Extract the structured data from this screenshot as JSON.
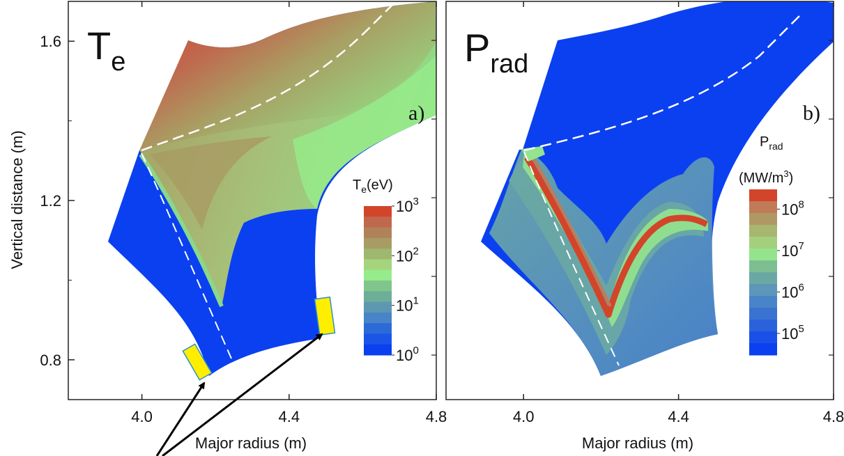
{
  "chart_data": [
    {
      "type": "heatmap",
      "panel_label": "a)",
      "quantity": {
        "symbol": "T",
        "subscript": "e"
      },
      "xlabel": "Major radius (m)",
      "ylabel": "Vertical distance (m)",
      "xlim": [
        3.8,
        4.8
      ],
      "ylim": [
        0.7,
        1.7
      ],
      "x_ticks": [
        "4.0",
        "4.4",
        "4.8"
      ],
      "y_ticks": [
        "0.8",
        "1.2",
        "1.6"
      ],
      "colorbar": {
        "title_symbol": "T",
        "title_subscript": "e",
        "title_unit": "(eV)",
        "scale": "log",
        "range": [
          1,
          1000
        ],
        "tick_labels": [
          {
            "base": "10",
            "exp": "3",
            "value": 1000
          },
          {
            "base": "10",
            "exp": "2",
            "value": 100
          },
          {
            "base": "10",
            "exp": "1",
            "value": 10
          },
          {
            "base": "10",
            "exp": "0",
            "value": 1
          }
        ]
      },
      "separatrix": "white dashed",
      "divertor_targets": "yellow rectangles"
    },
    {
      "type": "heatmap",
      "panel_label": "b)",
      "quantity": {
        "symbol": "P",
        "subscript": "rad"
      },
      "xlabel": "Major radius (m)",
      "xlim": [
        3.8,
        4.8
      ],
      "x_ticks": [
        "4.0",
        "4.4",
        "4.8"
      ],
      "colorbar": {
        "title_symbol": "P",
        "title_subscript": "rad",
        "title_unit_prefix": "(MW/m",
        "title_unit_exp": "3",
        "title_unit_suffix": ")",
        "scale": "log",
        "range": [
          30000,
          300000000
        ],
        "tick_labels": [
          {
            "base": "10",
            "exp": "8",
            "value": 100000000
          },
          {
            "base": "10",
            "exp": "7",
            "value": 10000000
          },
          {
            "base": "10",
            "exp": "6",
            "value": 1000000
          },
          {
            "base": "10",
            "exp": "5",
            "value": 100000
          }
        ]
      },
      "separatrix": "white dashed"
    }
  ],
  "colors": {
    "cold_blue": "#0b40f0",
    "deep_red": "#d2452a",
    "target_yellow": "#ffee00",
    "target_edge": "#2b8fd0",
    "te_scale": [
      "#0b40f0",
      "#1a55e8",
      "#2c6ad8",
      "#4a84c8",
      "#5d98b0",
      "#6dae98",
      "#80c68c",
      "#96ec8a",
      "#a6d47c",
      "#9fb870",
      "#a89c64",
      "#b0825a",
      "#c0684e",
      "#d2452a"
    ],
    "prad_scale": [
      "#0b40f0",
      "#1a50e8",
      "#2b62dc",
      "#3a72d2",
      "#4a84c8",
      "#5c96b8",
      "#6aa8a4",
      "#7cbe92",
      "#94e48e",
      "#a4d07e",
      "#a8b670",
      "#b09864",
      "#c07a58",
      "#d2452a"
    ]
  }
}
